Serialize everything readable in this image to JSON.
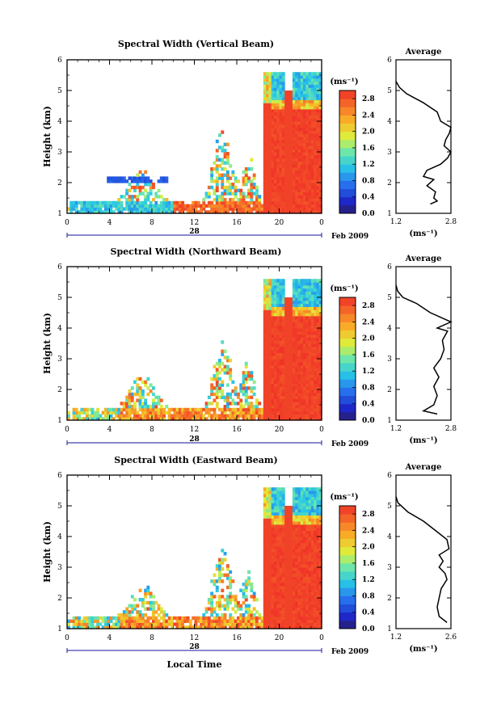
{
  "chart_data": [
    {
      "type": "heatmap",
      "title": "Spectral Width (Vertical Beam)",
      "ylabel": "Height (km)",
      "x_ticks": [
        "0",
        "4",
        "8",
        "12",
        "16",
        "20",
        "0"
      ],
      "y_ticks": [
        "1",
        "2",
        "3",
        "4",
        "5",
        "6"
      ],
      "xlim": [
        0,
        24
      ],
      "ylim": [
        1,
        6
      ],
      "date_day": "28",
      "date_label": "Feb 2009",
      "colorbar": {
        "unit": "(ms⁻¹)",
        "ticks": [
          "2.8",
          "2.4",
          "2.0",
          "1.6",
          "1.2",
          "0.8",
          "0.4",
          "0.0"
        ],
        "range": [
          0.0,
          3.0
        ]
      },
      "profile": {
        "title": "Average",
        "xlabel": "(ms⁻¹)",
        "x_ticks": [
          "1.2",
          "2.8"
        ],
        "xlim": [
          1.2,
          2.8
        ],
        "y": [
          1.3,
          1.4,
          1.5,
          1.7,
          1.9,
          2.1,
          2.2,
          2.4,
          2.6,
          2.8,
          3.0,
          3.2,
          3.4,
          3.6,
          3.8,
          4.0,
          4.3,
          4.6,
          4.9,
          5.1,
          5.3
        ],
        "x": [
          2.2,
          2.4,
          2.3,
          2.35,
          2.1,
          2.3,
          2.0,
          2.1,
          2.5,
          2.7,
          2.8,
          2.6,
          2.65,
          2.75,
          2.8,
          2.5,
          2.4,
          2.0,
          1.5,
          1.3,
          1.2
        ]
      }
    },
    {
      "type": "heatmap",
      "title": "Spectral Width (Northward Beam)",
      "ylabel": "Height (km)",
      "x_ticks": [
        "0",
        "4",
        "8",
        "12",
        "16",
        "20",
        "0"
      ],
      "y_ticks": [
        "1",
        "2",
        "3",
        "4",
        "5",
        "6"
      ],
      "xlim": [
        0,
        24
      ],
      "ylim": [
        1,
        6
      ],
      "date_day": "28",
      "date_label": "Feb 2009",
      "colorbar": {
        "unit": "(ms⁻¹)",
        "ticks": [
          "2.8",
          "2.4",
          "2.0",
          "1.6",
          "1.2",
          "0.8",
          "0.4",
          "0.0"
        ],
        "range": [
          0.0,
          3.0
        ]
      },
      "profile": {
        "title": "Average",
        "xlabel": "(ms⁻¹)",
        "x_ticks": [
          "1.2",
          "2.8"
        ],
        "xlim": [
          1.2,
          2.8
        ],
        "y": [
          1.2,
          1.3,
          1.5,
          1.8,
          2.1,
          2.4,
          2.7,
          3.0,
          3.3,
          3.6,
          3.9,
          4.0,
          4.2,
          4.5,
          4.8,
          5.0,
          5.2,
          5.4
        ],
        "x": [
          2.4,
          2.0,
          2.3,
          2.4,
          2.3,
          2.45,
          2.3,
          2.5,
          2.6,
          2.55,
          2.7,
          2.4,
          2.8,
          2.2,
          1.8,
          1.4,
          1.25,
          1.2
        ]
      }
    },
    {
      "type": "heatmap",
      "title": "Spectral Width (Eastward Beam)",
      "ylabel": "Height (km)",
      "xlabel": "Local Time",
      "x_ticks": [
        "0",
        "4",
        "8",
        "12",
        "16",
        "20",
        "0"
      ],
      "y_ticks": [
        "1",
        "2",
        "3",
        "4",
        "5",
        "6"
      ],
      "xlim": [
        0,
        24
      ],
      "ylim": [
        1,
        6
      ],
      "date_day": "28",
      "date_label": "Feb 2009",
      "colorbar": {
        "unit": "(ms⁻¹)",
        "ticks": [
          "2.8",
          "2.4",
          "2.0",
          "1.6",
          "1.2",
          "0.8",
          "0.4",
          "0.0"
        ],
        "range": [
          0.0,
          3.0
        ]
      },
      "profile": {
        "title": "Average",
        "xlabel": "(ms⁻¹)",
        "x_ticks": [
          "1.2",
          "2.6"
        ],
        "xlim": [
          1.2,
          2.6
        ],
        "y": [
          1.2,
          1.4,
          1.7,
          2.0,
          2.3,
          2.6,
          2.8,
          3.0,
          3.2,
          3.4,
          3.6,
          3.9,
          4.2,
          4.5,
          4.8,
          5.1,
          5.3
        ],
        "x": [
          2.5,
          2.3,
          2.25,
          2.3,
          2.35,
          2.5,
          2.45,
          2.3,
          2.4,
          2.3,
          2.55,
          2.5,
          2.2,
          1.9,
          1.5,
          1.25,
          1.2
        ]
      }
    }
  ]
}
